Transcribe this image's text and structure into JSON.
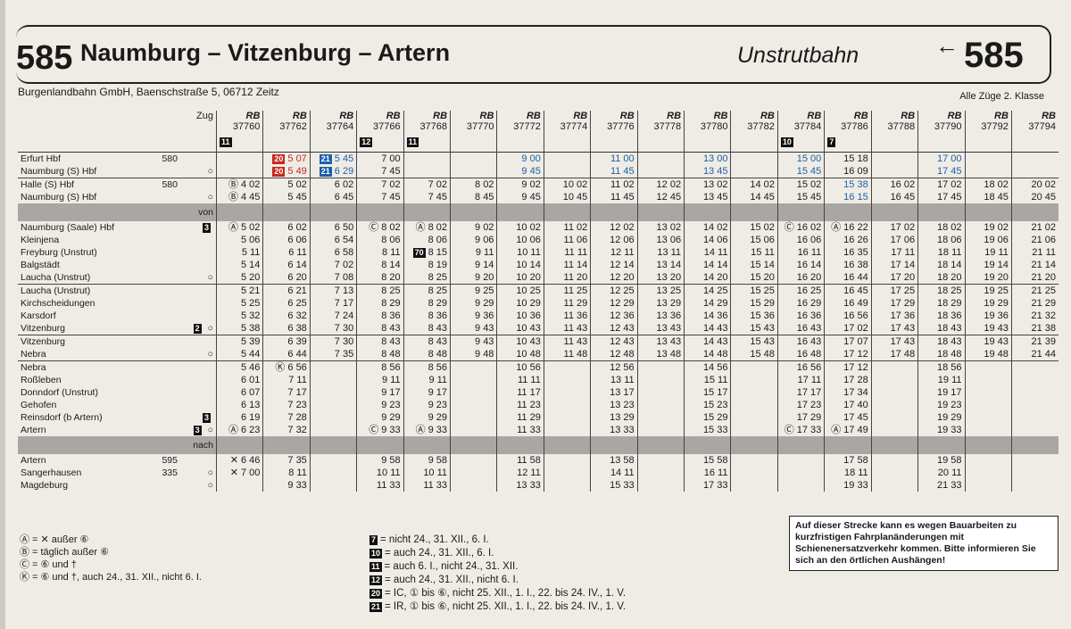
{
  "header": {
    "number": "585",
    "title": "Naumburg – Vitzenburg – Artern",
    "subtitle": "Unstrutbahn",
    "back_arrow": "←",
    "back_number": "585",
    "operator": "Burgenlandbahn GmbH, Baenschstraße 5, 06712 Zeitz",
    "class_note": "Alle Züge 2. Klasse"
  },
  "table": {
    "zug_label": "Zug",
    "train_type": "RB",
    "von_label": "von",
    "nach_label": "nach",
    "trains": [
      {
        "number": "37760",
        "mark": "11"
      },
      {
        "number": "37762"
      },
      {
        "number": "37764"
      },
      {
        "number": "37766",
        "mark": "12"
      },
      {
        "number": "37768",
        "mark": "11"
      },
      {
        "number": "37770"
      },
      {
        "number": "37772"
      },
      {
        "number": "37774"
      },
      {
        "number": "37776"
      },
      {
        "number": "37778"
      },
      {
        "number": "37780"
      },
      {
        "number": "37782"
      },
      {
        "number": "37784",
        "mark": "10"
      },
      {
        "number": "37786",
        "mark": "7"
      },
      {
        "number": "37788"
      },
      {
        "number": "37790"
      },
      {
        "number": "37792"
      },
      {
        "number": "37794"
      }
    ],
    "feeder_rows": [
      {
        "station": "Erfurt Hbf",
        "ref": "580",
        "cells": [
          null,
          {
            "mark": "20",
            "time": "5 07",
            "color": "#c8281e"
          },
          {
            "mark": "21",
            "time": "5 45",
            "color": "#1d5fa8"
          },
          "7 00",
          null,
          null,
          {
            "time": "9 00",
            "color": "#1d5fa8"
          },
          null,
          {
            "time": "11 00",
            "color": "#1d5fa8"
          },
          null,
          {
            "time": "13 00",
            "color": "#1d5fa8"
          },
          null,
          {
            "time": "15 00",
            "color": "#1d5fa8"
          },
          "15 18",
          null,
          {
            "time": "17 00",
            "color": "#1d5fa8"
          },
          null,
          null
        ]
      },
      {
        "station": "Naumburg (S) Hbf",
        "symbol": "○",
        "cells": [
          null,
          {
            "mark": "20",
            "time": "5 49",
            "color": "#c8281e"
          },
          {
            "mark": "21",
            "time": "6 29",
            "color": "#1d5fa8"
          },
          "7 45",
          null,
          null,
          {
            "time": "9 45",
            "color": "#1d5fa8"
          },
          null,
          {
            "time": "11 45",
            "color": "#1d5fa8"
          },
          null,
          {
            "time": "13 45",
            "color": "#1d5fa8"
          },
          null,
          {
            "time": "15 45",
            "color": "#1d5fa8"
          },
          "16 09",
          null,
          {
            "time": "17 45",
            "color": "#1d5fa8"
          },
          null,
          null
        ]
      },
      {
        "station": "Halle (S) Hbf",
        "ref": "580",
        "cells": [
          {
            "mark": "Ⓑ",
            "time": "4 02"
          },
          "5 02",
          "6 02",
          "7 02",
          "7 02",
          "8 02",
          "9 02",
          "10 02",
          "11 02",
          "12 02",
          "13 02",
          "14 02",
          "15 02",
          {
            "time": "15 38",
            "color": "#1d5fa8"
          },
          "16 02",
          "17 02",
          "18 02",
          "20 02"
        ]
      },
      {
        "station": "Naumburg (S) Hbf",
        "symbol": "○",
        "cells": [
          {
            "mark": "Ⓑ",
            "time": "4 45"
          },
          "5 45",
          "6 45",
          "7 45",
          "7 45",
          "8 45",
          "9 45",
          "10 45",
          "11 45",
          "12 45",
          "13 45",
          "14 45",
          "15 45",
          {
            "time": "16 15",
            "color": "#1d5fa8"
          },
          "16 45",
          "17 45",
          "18 45",
          "20 45"
        ]
      }
    ],
    "main_rows": [
      {
        "station": "Naumburg (Saale) Hbf",
        "box": "3",
        "cells": [
          {
            "mark": "Ⓐ",
            "time": "5 02"
          },
          "6 02",
          "6 50",
          {
            "mark": "Ⓒ",
            "time": "8 02"
          },
          {
            "mark": "Ⓐ",
            "time": "8 02"
          },
          "9 02",
          "10 02",
          "11 02",
          "12 02",
          "13 02",
          "14 02",
          "15 02",
          {
            "mark": "Ⓒ",
            "time": "16 02"
          },
          {
            "mark": "Ⓐ",
            "time": "16 22"
          },
          "17 02",
          "18 02",
          "19 02",
          "21 02"
        ]
      },
      {
        "station": "Kleinjena",
        "cells": [
          "5 06",
          "6 06",
          "6 54",
          "8 06",
          "8 06",
          "9 06",
          "10 06",
          "11 06",
          "12 06",
          "13 06",
          "14 06",
          "15 06",
          "16 06",
          "16 26",
          "17 06",
          "18 06",
          "19 06",
          "21 06"
        ]
      },
      {
        "station": "Freyburg (Unstrut)",
        "cells": [
          "5 11",
          "6 11",
          "6 58",
          "8 11",
          {
            "mark": "70",
            "time": "8 15"
          },
          "9 11",
          "10 11",
          "11 11",
          "12 11",
          "13 11",
          "14 11",
          "15 11",
          "16 11",
          "16 35",
          "17 11",
          "18 11",
          "19 11",
          "21 11"
        ]
      },
      {
        "station": "Balgstädt",
        "cells": [
          "5 14",
          "6 14",
          "7 02",
          "8 14",
          "8 19",
          "9 14",
          "10 14",
          "11 14",
          "12 14",
          "13 14",
          "14 14",
          "15 14",
          "16 14",
          "16 38",
          "17 14",
          "18 14",
          "19 14",
          "21 14"
        ]
      },
      {
        "station": "Laucha (Unstrut)",
        "symbol": "○",
        "cells": [
          "5 20",
          "6 20",
          "7 08",
          "8 20",
          "8 25",
          "9 20",
          "10 20",
          "11 20",
          "12 20",
          "13 20",
          "14 20",
          "15 20",
          "16 20",
          "16 44",
          "17 20",
          "18 20",
          "19 20",
          "21 20"
        ]
      },
      {
        "station": "Laucha (Unstrut)",
        "cells": [
          "5 21",
          "6 21",
          "7 13",
          "8 25",
          "8 25",
          "9 25",
          "10 25",
          "11 25",
          "12 25",
          "13 25",
          "14 25",
          "15 25",
          "16 25",
          "16 45",
          "17 25",
          "18 25",
          "19 25",
          "21 25"
        ]
      },
      {
        "station": "Kirchscheidungen",
        "cells": [
          "5 25",
          "6 25",
          "7 17",
          "8 29",
          "8 29",
          "9 29",
          "10 29",
          "11 29",
          "12 29",
          "13 29",
          "14 29",
          "15 29",
          "16 29",
          "16 49",
          "17 29",
          "18 29",
          "19 29",
          "21 29"
        ]
      },
      {
        "station": "Karsdorf",
        "cells": [
          "5 32",
          "6 32",
          "7 24",
          "8 36",
          "8 36",
          "9 36",
          "10 36",
          "11 36",
          "12 36",
          "13 36",
          "14 36",
          "15 36",
          "16 36",
          "16 56",
          "17 36",
          "18 36",
          "19 36",
          "21 32"
        ]
      },
      {
        "station": "Vitzenburg",
        "box": "2",
        "symbol": "○",
        "cells": [
          "5 38",
          "6 38",
          "7 30",
          "8 43",
          "8 43",
          "9 43",
          "10 43",
          "11 43",
          "12 43",
          "13 43",
          "14 43",
          "15 43",
          "16 43",
          "17 02",
          "17 43",
          "18 43",
          "19 43",
          "21 38"
        ]
      },
      {
        "station": "Vitzenburg",
        "cells": [
          "5 39",
          "6 39",
          "7 30",
          "8 43",
          "8 43",
          "9 43",
          "10 43",
          "11 43",
          "12 43",
          "13 43",
          "14 43",
          "15 43",
          "16 43",
          "17 07",
          "17 43",
          "18 43",
          "19 43",
          "21 39"
        ]
      },
      {
        "station": "Nebra",
        "symbol": "○",
        "cells": [
          "5 44",
          "6 44",
          "7 35",
          "8 48",
          "8 48",
          "9 48",
          "10 48",
          "11 48",
          "12 48",
          "13 48",
          "14 48",
          "15 48",
          "16 48",
          "17 12",
          "17 48",
          "18 48",
          "19 48",
          "21 44"
        ]
      },
      {
        "station": "Nebra",
        "cells": [
          "5 46",
          {
            "mark": "Ⓚ",
            "time": "6 56"
          },
          null,
          "8 56",
          "8 56",
          null,
          "10 56",
          null,
          "12 56",
          null,
          "14 56",
          null,
          "16 56",
          "17 12",
          null,
          "18 56",
          null,
          null
        ]
      },
      {
        "station": "Roßleben",
        "cells": [
          "6 01",
          "7 11",
          null,
          "9 11",
          "9 11",
          null,
          "11 11",
          null,
          "13 11",
          null,
          "15 11",
          null,
          "17 11",
          "17 28",
          null,
          "19 11",
          null,
          null
        ]
      },
      {
        "station": "Donndorf (Unstrut)",
        "cells": [
          "6 07",
          "7 17",
          null,
          "9 17",
          "9 17",
          null,
          "11 17",
          null,
          "13 17",
          null,
          "15 17",
          null,
          "17 17",
          "17 34",
          null,
          "19 17",
          null,
          null
        ]
      },
      {
        "station": "Gehofen",
        "cells": [
          "6 13",
          "7 23",
          null,
          "9 23",
          "9 23",
          null,
          "11 23",
          null,
          "13 23",
          null,
          "15 23",
          null,
          "17 23",
          "17 40",
          null,
          "19 23",
          null,
          null
        ]
      },
      {
        "station": "Reinsdorf (b Artern)",
        "box": "3",
        "cells": [
          "6 19",
          "7 28",
          null,
          "9 29",
          "9 29",
          null,
          "11 29",
          null,
          "13 29",
          null,
          "15 29",
          null,
          "17 29",
          "17 45",
          null,
          "19 29",
          null,
          null
        ]
      },
      {
        "station": "Artern",
        "box": "3",
        "symbol": "○",
        "cells": [
          {
            "mark": "Ⓐ",
            "time": "6 23"
          },
          "7 32",
          null,
          {
            "mark": "Ⓒ",
            "time": "9 33"
          },
          {
            "mark": "Ⓐ",
            "time": "9 33"
          },
          null,
          "11 33",
          null,
          "13 33",
          null,
          "15 33",
          null,
          {
            "mark": "Ⓒ",
            "time": "17 33"
          },
          {
            "mark": "Ⓐ",
            "time": "17 49"
          },
          null,
          "19 33",
          null,
          null
        ]
      }
    ],
    "onward_rows": [
      {
        "station": "Artern",
        "ref": "595",
        "cells": [
          {
            "mark": "✕",
            "time": "6 46"
          },
          "7 35",
          null,
          "9 58",
          "9 58",
          null,
          "11 58",
          null,
          "13 58",
          null,
          "15 58",
          null,
          null,
          "17 58",
          null,
          "19 58",
          null,
          null
        ]
      },
      {
        "station": "Sangerhausen",
        "ref": "335",
        "symbol": "○",
        "cells": [
          {
            "mark": "✕",
            "time": "7 00"
          },
          "8 11",
          null,
          "10 11",
          "10 11",
          null,
          "12 11",
          null,
          "14 11",
          null,
          "16 11",
          null,
          null,
          "18 11",
          null,
          "20 11",
          null,
          null
        ]
      },
      {
        "station": "Magdeburg",
        "symbol": "○",
        "cells": [
          null,
          "9 33",
          null,
          "11 33",
          "11 33",
          null,
          "13 33",
          null,
          "15 33",
          null,
          "17 33",
          null,
          null,
          "19 33",
          null,
          "21 33",
          null,
          null
        ]
      }
    ]
  },
  "footnotes_left": [
    {
      "symbol": "Ⓐ",
      "text": "= ✕ außer ⑥"
    },
    {
      "symbol": "Ⓑ",
      "text": "= täglich außer ⑥"
    },
    {
      "symbol": "Ⓒ",
      "text": "= ⑥ und †"
    },
    {
      "symbol": "Ⓚ",
      "text": "= ⑥ und †, auch 24., 31. XII., nicht 6. I."
    }
  ],
  "footnotes_right": [
    {
      "box": "7",
      "text": "= nicht 24., 31. XII., 6. I."
    },
    {
      "box": "10",
      "text": "= auch 24., 31. XII., 6. I."
    },
    {
      "box": "11",
      "text": "= auch 6. I., nicht 24., 31. XII."
    },
    {
      "box": "12",
      "text": "= auch 24., 31. XII., nicht 6. I."
    },
    {
      "box": "20",
      "text": "= IC, ① bis ⑥, nicht 25. XII., 1. I., 22. bis 24. IV., 1. V."
    },
    {
      "box": "21",
      "text": "= IR, ① bis ⑥, nicht 25. XII., 1. I., 22. bis 24. IV., 1. V."
    }
  ],
  "notice": "Auf dieser Strecke kann es wegen Bauarbeiten zu kurzfristigen Fahrplanänderungen mit Schienenersatzverkehr kommen. Bitte informieren Sie sich an den örtlichen Aushängen!"
}
